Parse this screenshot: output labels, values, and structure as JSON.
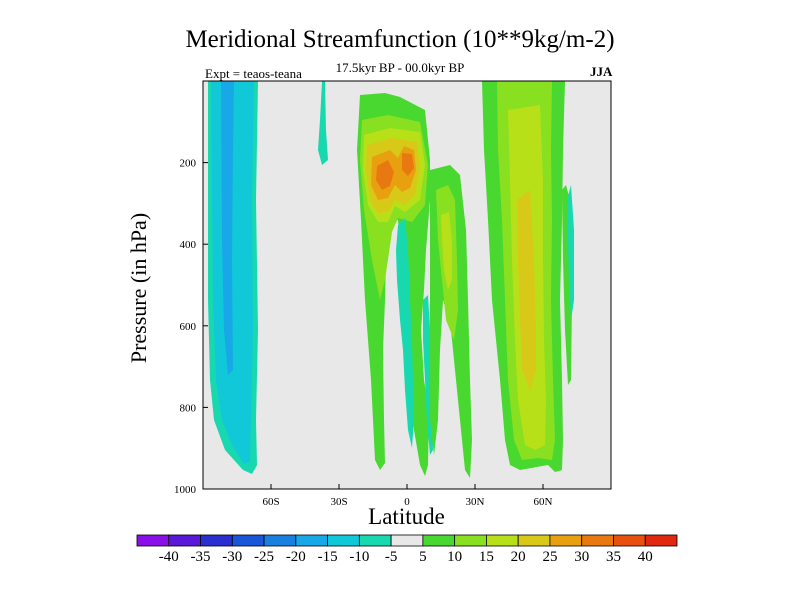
{
  "chart_data": {
    "type": "heatmap",
    "title": "Meridional Streamfunction (10**9kg/m-2)",
    "subtitle": "17.5kyr BP - 00.0kyr BP",
    "experiment": "Expt = teaos-teana",
    "season": "JJA",
    "xlabel": "Latitude",
    "ylabel": "Pressure (in hPa)",
    "xlim": [
      -90,
      90
    ],
    "ylim": [
      1000,
      0
    ],
    "x_ticks": [
      {
        "value": -60,
        "label": "60S"
      },
      {
        "value": -30,
        "label": "30S"
      },
      {
        "value": 0,
        "label": "0"
      },
      {
        "value": 30,
        "label": "30N"
      },
      {
        "value": 60,
        "label": "60N"
      }
    ],
    "y_ticks": [
      {
        "value": 200,
        "label": "200"
      },
      {
        "value": 400,
        "label": "400"
      },
      {
        "value": 600,
        "label": "600"
      },
      {
        "value": 800,
        "label": "800"
      },
      {
        "value": 1000,
        "label": "1000"
      }
    ],
    "colorbar": {
      "levels": [
        "-40",
        "-35",
        "-30",
        "-25",
        "-20",
        "-15",
        "-10",
        "-5",
        "5",
        "10",
        "15",
        "20",
        "25",
        "30",
        "35",
        "40"
      ],
      "colors": [
        "#8a10e8",
        "#5a18d8",
        "#2a30d0",
        "#1858d8",
        "#1a80e0",
        "#18a8e8",
        "#10c8d8",
        "#18d8b0",
        "#e8e8e8",
        "#48d830",
        "#88e020",
        "#b8e018",
        "#d8c818",
        "#e8a010",
        "#e87810",
        "#e85010",
        "#e02810"
      ]
    },
    "features": [
      {
        "name": "southern high-latitude cell",
        "band": "-5 to -15",
        "lat_range": [
          -88,
          -63
        ],
        "p_range": [
          0,
          960
        ]
      },
      {
        "name": "southern polar core",
        "band": "-10 to -15",
        "lat_range": [
          -85,
          -77
        ],
        "p_range": [
          0,
          720
        ]
      },
      {
        "name": "subtropical positive cell",
        "band": "5 to 35",
        "lat_range": [
          -20,
          1
        ],
        "p_range": [
          70,
          955
        ],
        "peak_hPa": 210,
        "peak_lat": -11
      },
      {
        "name": "upper tropical positive max",
        "band": "25 to 35",
        "lat_range": [
          -9,
          10
        ],
        "p_range": [
          130,
          330
        ],
        "peak_hPa": 180,
        "peak_lat": 1
      },
      {
        "name": "equatorial negative tongue",
        "band": "-5",
        "lat_range": [
          -5,
          10
        ],
        "p_range": [
          280,
          915
        ]
      },
      {
        "name": "northern subtropical band",
        "band": "5 to 20",
        "lat_range": [
          9,
          33
        ],
        "p_range": [
          210,
          975
        ]
      },
      {
        "name": "northern mid-latitude cell",
        "band": "10 to 25",
        "lat_range": [
          35,
          70
        ],
        "p_range": [
          0,
          965
        ],
        "peak_hPa": 650,
        "peak_lat": 52
      },
      {
        "name": "upper small negative patch",
        "band": "-5",
        "lat_range": [
          -38,
          -35
        ],
        "p_range": [
          55,
          210
        ]
      }
    ]
  }
}
